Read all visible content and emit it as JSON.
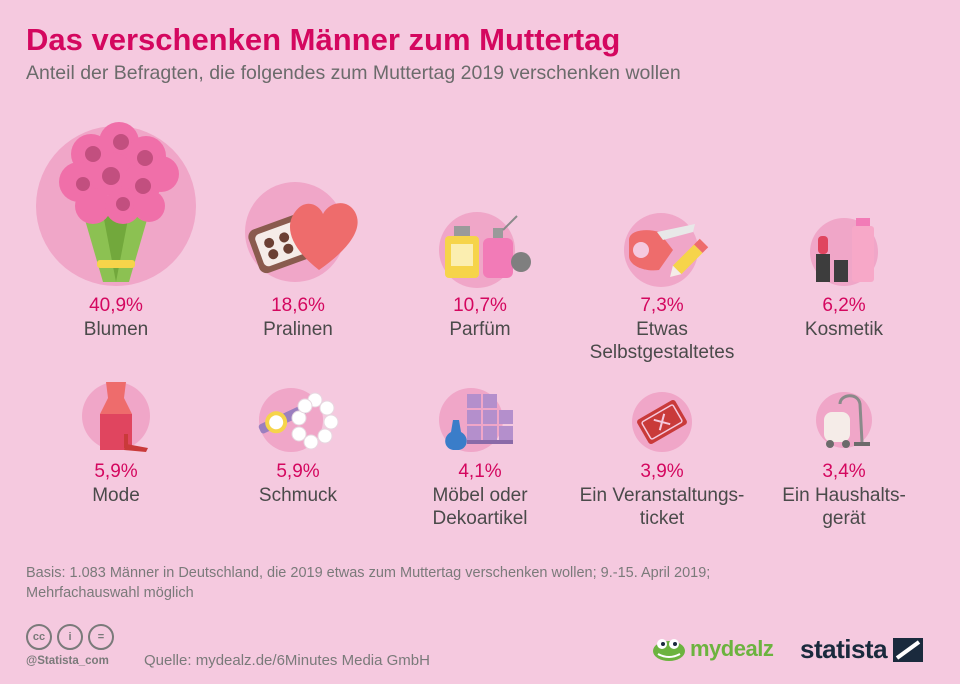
{
  "header": {
    "title": "Das verschenken Männer zum Muttertag",
    "subtitle": "Anteil der Befragten, die folgendes zum Muttertag 2019 verschenken wollen"
  },
  "chart_data": {
    "type": "pictogram",
    "unit": "%",
    "items": [
      {
        "label": "Blumen",
        "value_label": "40,9%",
        "value": 40.9,
        "icon": "flower-bouquet-icon"
      },
      {
        "label": "Pralinen",
        "value_label": "18,6%",
        "value": 18.6,
        "icon": "chocolate-box-icon"
      },
      {
        "label": "Parfüm",
        "value_label": "10,7%",
        "value": 10.7,
        "icon": "perfume-icon"
      },
      {
        "label": "Etwas Selbstgestaltetes",
        "value_label": "7,3%",
        "value": 7.3,
        "icon": "craft-tape-icon"
      },
      {
        "label": "Kosmetik",
        "value_label": "6,2%",
        "value": 6.2,
        "icon": "cosmetics-icon"
      },
      {
        "label": "Mode",
        "value_label": "5,9%",
        "value": 5.9,
        "icon": "dress-icon"
      },
      {
        "label": "Schmuck",
        "value_label": "5,9%",
        "value": 5.9,
        "icon": "jewelry-icon"
      },
      {
        "label": "Möbel oder Dekoartikel",
        "value_label": "4,1%",
        "value": 4.1,
        "icon": "furniture-icon"
      },
      {
        "label": "Ein Veranstaltungs-ticket",
        "value_label": "3,9%",
        "value": 3.9,
        "icon": "ticket-icon"
      },
      {
        "label": "Ein Haushalts-gerät",
        "value_label": "3,4%",
        "value": 3.4,
        "icon": "vacuum-icon"
      }
    ]
  },
  "labels": {
    "item0": "Blumen",
    "item1": "Pralinen",
    "item2": "Parfüm",
    "item3a": "Etwas",
    "item3b": "Selbstgestaltetes",
    "item4": "Kosmetik",
    "item5": "Mode",
    "item6": "Schmuck",
    "item7a": "Möbel oder",
    "item7b": "Dekoartikel",
    "item8a": "Ein Veranstaltungs-",
    "item8b": "ticket",
    "item9a": "Ein Haushalts-",
    "item9b": "gerät"
  },
  "footer": {
    "basis_line1": "Basis: 1.083 Männer in Deutschland, die 2019 etwas zum Muttertag verschenken wollen; 9.-15. April 2019;",
    "basis_line2": "Mehrfachauswahl möglich",
    "license_cc": "cc",
    "license_by": "i",
    "license_nd": "=",
    "handle": "@Statista_com",
    "source": "Quelle: mydealz.de/6Minutes Media GmbH",
    "logo_mydealz": "mydealz",
    "logo_statista": "statista"
  },
  "colors": {
    "background": "#f5c9df",
    "accent": "#d4075f",
    "circle": "#f0a6c8",
    "text": "#4a4a4a"
  }
}
